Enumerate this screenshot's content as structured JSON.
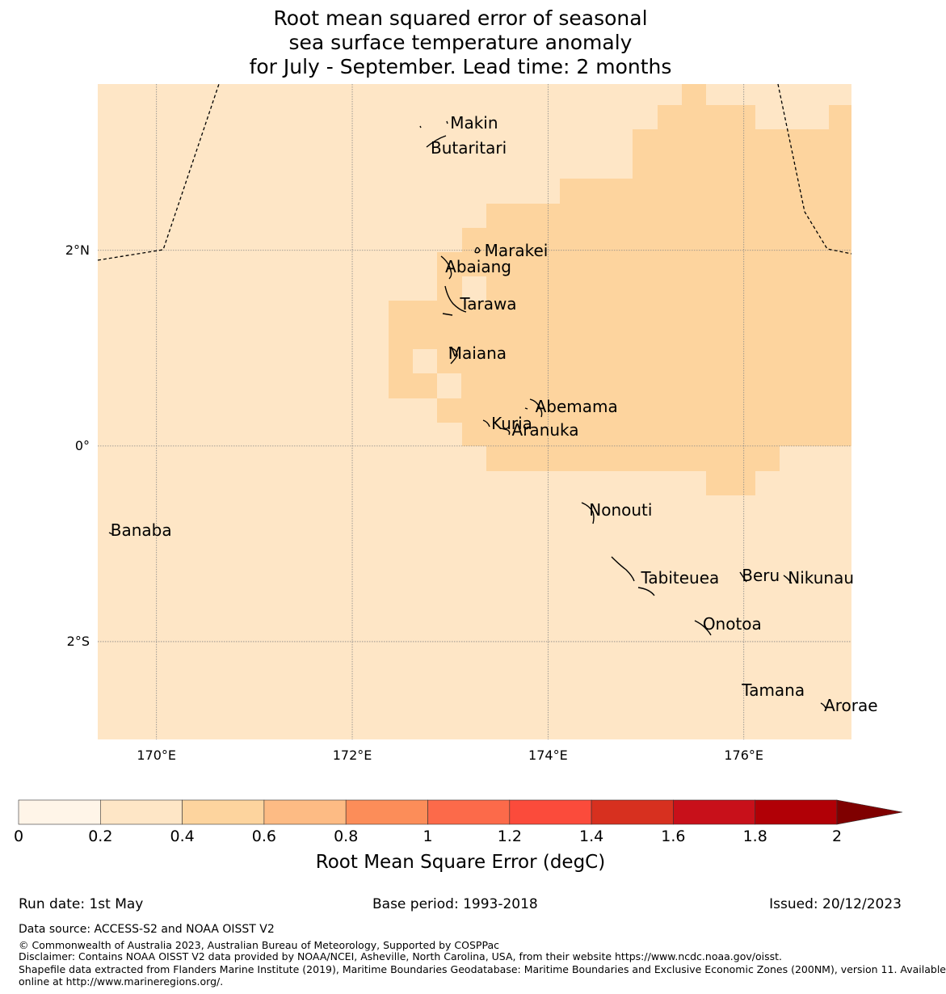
{
  "title": {
    "line1": "Root mean squared error of seasonal",
    "line2": "sea surface temperature anomaly",
    "line3": "for July - September. Lead time: 2 months"
  },
  "map": {
    "lon_range": [
      169.4,
      177.1
    ],
    "lat_range": [
      -3.0,
      3.7
    ],
    "lat_ticks": [
      {
        "value": 2,
        "label": "2°N"
      },
      {
        "value": 0,
        "label": "0°"
      },
      {
        "value": -2,
        "label": "2°S"
      }
    ],
    "lon_ticks": [
      {
        "value": 170,
        "label": "170°E"
      },
      {
        "value": 172,
        "label": "172°E"
      },
      {
        "value": 174,
        "label": "174°E"
      },
      {
        "value": 176,
        "label": "176°E"
      }
    ],
    "background_class_color": "#fee6c6",
    "band_color": "#fdd49e",
    "places": [
      {
        "name": "Makin",
        "lon": 173.0,
        "lat": 3.3
      },
      {
        "name": "Butaritari",
        "lon": 172.8,
        "lat": 3.05
      },
      {
        "name": "Marakei",
        "lon": 173.35,
        "lat": 2.0
      },
      {
        "name": "Abaiang",
        "lon": 172.95,
        "lat": 1.83
      },
      {
        "name": "Tarawa",
        "lon": 173.1,
        "lat": 1.45
      },
      {
        "name": "Maiana",
        "lon": 172.98,
        "lat": 0.95
      },
      {
        "name": "Abemama",
        "lon": 173.87,
        "lat": 0.4
      },
      {
        "name": "Kuria",
        "lon": 173.42,
        "lat": 0.23
      },
      {
        "name": "Aranuka",
        "lon": 173.63,
        "lat": 0.16
      },
      {
        "name": "Nonouti",
        "lon": 174.42,
        "lat": -0.65
      },
      {
        "name": "Banaba",
        "lon": 169.53,
        "lat": -0.86
      },
      {
        "name": "Tabiteuea",
        "lon": 174.95,
        "lat": -1.35
      },
      {
        "name": "Beru",
        "lon": 175.98,
        "lat": -1.32
      },
      {
        "name": "Nikunau",
        "lon": 176.45,
        "lat": -1.35
      },
      {
        "name": "Onotoa",
        "lon": 175.58,
        "lat": -1.82
      },
      {
        "name": "Tamana",
        "lon": 175.98,
        "lat": -2.5
      },
      {
        "name": "Arorae",
        "lon": 176.82,
        "lat": -2.65
      }
    ]
  },
  "colorbar": {
    "title": "Root Mean Square Error (degC)",
    "ticks": [
      "0",
      "0.2",
      "0.4",
      "0.6",
      "0.8",
      "1",
      "1.2",
      "1.4",
      "1.6",
      "1.8",
      "2"
    ],
    "colors": [
      "#fff5e8",
      "#fee6c6",
      "#fdd49e",
      "#fdbb84",
      "#fc8d59",
      "#fc6a4a",
      "#fb4b3b",
      "#d7301f",
      "#c8101a",
      "#b10006"
    ],
    "extend_color": "#7f0000"
  },
  "footer": {
    "run_date": "Run date: 1st May",
    "base_period": "Base period: 1993-2018",
    "issued": "Issued: 20/12/2023",
    "data_source": "Data source: ACCESS-S2 and NOAA OISST V2",
    "copyright": "© Commonwealth of Australia 2023, Australian Bureau of Meteorology, Supported by COSPPac",
    "disclaimer": "Disclaimer: Contains NOAA OISST V2 data provided by NOAA/NCEI, Asheville, North Carolina, USA, from their website https://www.ncdc.noaa.gov/oisst.",
    "shapefile1": "Shapefile data extracted from Flanders Marine Institute (2019), Maritime Boundaries Geodatabase: Maritime Boundaries and Exclusive Economic Zones (200NM), version 11. Available",
    "shapefile2": "online at http://www.marineregions.org/."
  }
}
